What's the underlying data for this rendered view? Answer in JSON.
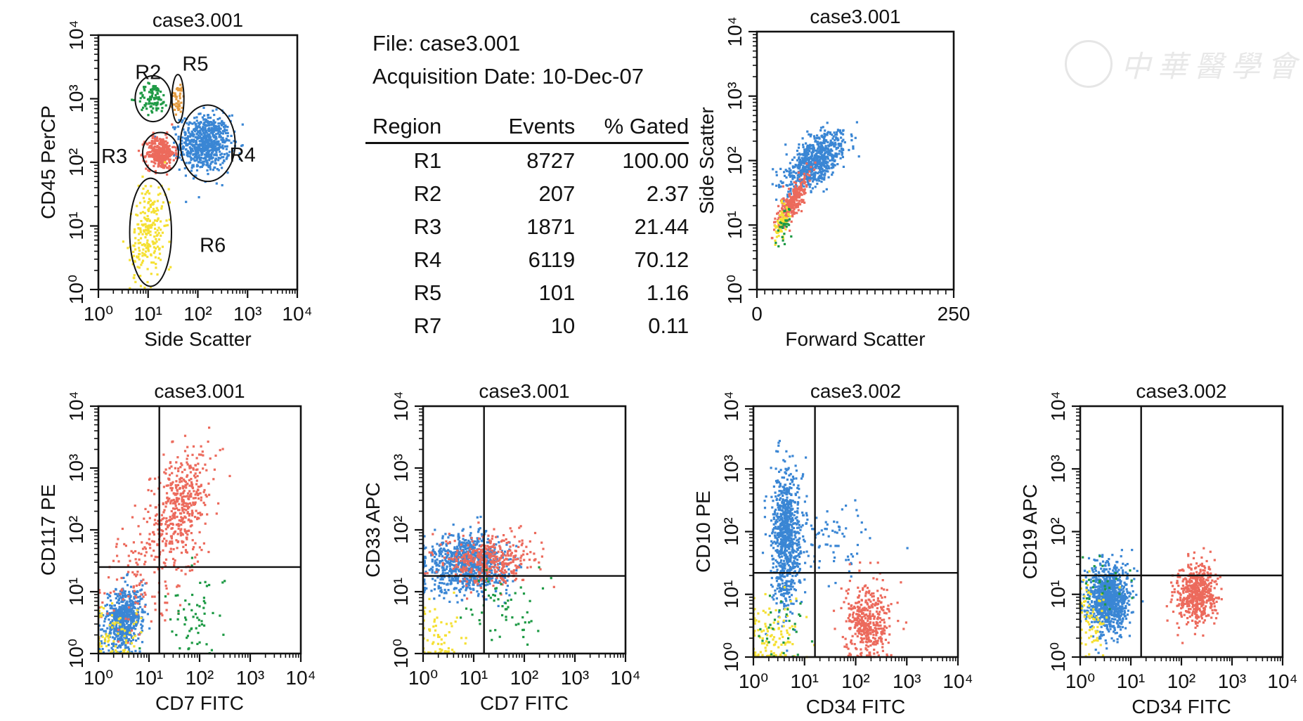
{
  "info": {
    "file_line": "File: case3.001",
    "date_line": "Acquisition Date: 10-Dec-07"
  },
  "stats_table": {
    "headers": [
      "Region",
      "Events",
      "% Gated"
    ],
    "rows": [
      [
        "R1",
        "8727",
        "100.00"
      ],
      [
        "R2",
        "207",
        "2.37"
      ],
      [
        "R3",
        "1871",
        "21.44"
      ],
      [
        "R4",
        "6119",
        "70.12"
      ],
      [
        "R5",
        "101",
        "1.16"
      ],
      [
        "R7",
        "10",
        "0.11"
      ]
    ]
  },
  "watermark": {
    "text": "中華醫學會"
  },
  "colors": {
    "blue": "#3a86d4",
    "red": "#ec6a5c",
    "yellow": "#f5e033",
    "green": "#1e9a45",
    "orange": "#e39a3f",
    "black": "#111111"
  },
  "chart_data": [
    {
      "id": "p1",
      "type": "scatter",
      "title": "case3.001",
      "xlabel": "Side Scatter",
      "ylabel": "CD45 PerCP",
      "x_scale": "log",
      "y_scale": "log",
      "xlim": [
        1,
        10000
      ],
      "ylim": [
        1,
        10000
      ],
      "gate_labels": [
        "R2",
        "R5",
        "R3",
        "R4",
        "R6"
      ],
      "populations": [
        {
          "color": "blue",
          "count": 700,
          "cx": 2.15,
          "cy": 2.3,
          "sx": 0.25,
          "sy": 0.22,
          "rho": 0
        },
        {
          "color": "red",
          "count": 320,
          "cx": 1.25,
          "cy": 2.15,
          "sx": 0.14,
          "sy": 0.13,
          "rho": 0
        },
        {
          "color": "green",
          "count": 90,
          "cx": 1.1,
          "cy": 3.0,
          "sx": 0.16,
          "sy": 0.12,
          "rho": 0
        },
        {
          "color": "orange",
          "count": 40,
          "cx": 1.6,
          "cy": 3.0,
          "sx": 0.07,
          "sy": 0.13,
          "rho": 0
        },
        {
          "color": "yellow",
          "count": 230,
          "cx": 1.0,
          "cy": 0.9,
          "sx": 0.18,
          "sy": 0.4,
          "rho": 0.3
        }
      ]
    },
    {
      "id": "p2",
      "type": "scatter",
      "title": "case3.001",
      "xlabel": "Forward Scatter",
      "ylabel": "Side Scatter",
      "x_scale": "linear",
      "y_scale": "log",
      "xlim": [
        0,
        250
      ],
      "ylim": [
        1,
        10000
      ],
      "x_tick_labels": [
        "0",
        "250"
      ],
      "populations": [
        {
          "color": "blue",
          "count": 700,
          "cx": 75,
          "cy": 2.0,
          "sx": 19,
          "sy": 0.23,
          "rho": 0.6
        },
        {
          "color": "red",
          "count": 300,
          "cx": 45,
          "cy": 1.35,
          "sx": 10,
          "sy": 0.2,
          "rho": 0.8
        },
        {
          "color": "yellow",
          "count": 60,
          "cx": 32,
          "cy": 1.05,
          "sx": 5,
          "sy": 0.15,
          "rho": 0.5
        },
        {
          "color": "green",
          "count": 30,
          "cx": 34,
          "cy": 1.0,
          "sx": 4,
          "sy": 0.12,
          "rho": 0.5
        }
      ]
    },
    {
      "id": "p3",
      "type": "scatter",
      "title": "case3.001",
      "xlabel": "CD7 FITC",
      "ylabel": "CD117 PE",
      "x_scale": "log",
      "y_scale": "log",
      "xlim": [
        1,
        10000
      ],
      "ylim": [
        1,
        10000
      ],
      "quadrant": {
        "x": 16,
        "y": 25
      },
      "populations": [
        {
          "color": "blue",
          "count": 600,
          "cx": 0.5,
          "cy": 0.55,
          "sx": 0.18,
          "sy": 0.24,
          "rho": 0.2
        },
        {
          "color": "red",
          "count": 420,
          "cx": 1.65,
          "cy": 2.4,
          "sx": 0.27,
          "sy": 0.45,
          "rho": 0.3
        },
        {
          "color": "red",
          "count": 160,
          "cx": 0.9,
          "cy": 1.4,
          "sx": 0.5,
          "sy": 0.55,
          "rho": 0.4
        },
        {
          "color": "green",
          "count": 60,
          "cx": 1.9,
          "cy": 0.6,
          "sx": 0.3,
          "sy": 0.35,
          "rho": 0
        },
        {
          "color": "yellow",
          "count": 70,
          "cx": 0.3,
          "cy": 0.3,
          "sx": 0.25,
          "sy": 0.25,
          "rho": 0
        }
      ]
    },
    {
      "id": "p4",
      "type": "scatter",
      "title": "case3.001",
      "xlabel": "CD7 FITC",
      "ylabel": "CD33 APC",
      "x_scale": "log",
      "y_scale": "log",
      "xlim": [
        1,
        10000
      ],
      "ylim": [
        1,
        10000
      ],
      "quadrant": {
        "x": 16,
        "y": 18
      },
      "populations": [
        {
          "color": "blue",
          "count": 850,
          "cx": 0.85,
          "cy": 1.45,
          "sx": 0.4,
          "sy": 0.23,
          "rho": 0
        },
        {
          "color": "red",
          "count": 380,
          "cx": 1.35,
          "cy": 1.5,
          "sx": 0.45,
          "sy": 0.22,
          "rho": 0
        },
        {
          "color": "green",
          "count": 60,
          "cx": 1.6,
          "cy": 0.8,
          "sx": 0.4,
          "sy": 0.3,
          "rho": 0
        },
        {
          "color": "yellow",
          "count": 60,
          "cx": 0.3,
          "cy": 0.3,
          "sx": 0.25,
          "sy": 0.25,
          "rho": 0
        }
      ]
    },
    {
      "id": "p5",
      "type": "scatter",
      "title": "case3.002",
      "xlabel": "CD34 FITC",
      "ylabel": "CD10 PE",
      "x_scale": "log",
      "y_scale": "log",
      "xlim": [
        1,
        10000
      ],
      "ylim": [
        1,
        10000
      ],
      "quadrant": {
        "x": 16,
        "y": 22
      },
      "populations": [
        {
          "color": "blue",
          "count": 800,
          "cx": 0.65,
          "cy": 1.9,
          "sx": 0.14,
          "sy": 0.55,
          "rho": 0
        },
        {
          "color": "blue",
          "count": 80,
          "cx": 1.5,
          "cy": 1.9,
          "sx": 0.4,
          "sy": 0.3,
          "rho": 0
        },
        {
          "color": "red",
          "count": 420,
          "cx": 2.25,
          "cy": 0.55,
          "sx": 0.22,
          "sy": 0.3,
          "rho": 0
        },
        {
          "color": "yellow",
          "count": 120,
          "cx": 0.35,
          "cy": 0.35,
          "sx": 0.3,
          "sy": 0.3,
          "rho": 0
        },
        {
          "color": "green",
          "count": 30,
          "cx": 0.5,
          "cy": 0.4,
          "sx": 0.3,
          "sy": 0.3,
          "rho": 0
        }
      ]
    },
    {
      "id": "p6",
      "type": "scatter",
      "title": "case3.002",
      "xlabel": "CD34 FITC",
      "ylabel": "CD19 APC",
      "x_scale": "log",
      "y_scale": "log",
      "xlim": [
        1,
        10000
      ],
      "ylim": [
        1,
        10000
      ],
      "quadrant": {
        "x": 16,
        "y": 20
      },
      "populations": [
        {
          "color": "blue",
          "count": 950,
          "cx": 0.55,
          "cy": 0.95,
          "sx": 0.2,
          "sy": 0.27,
          "rho": 0
        },
        {
          "color": "red",
          "count": 520,
          "cx": 2.3,
          "cy": 1.0,
          "sx": 0.2,
          "sy": 0.24,
          "rho": 0
        },
        {
          "color": "yellow",
          "count": 70,
          "cx": 0.2,
          "cy": 0.6,
          "sx": 0.18,
          "sy": 0.3,
          "rho": 0
        },
        {
          "color": "green",
          "count": 25,
          "cx": 0.5,
          "cy": 1.2,
          "sx": 0.3,
          "sy": 0.2,
          "rho": 0
        }
      ]
    }
  ]
}
